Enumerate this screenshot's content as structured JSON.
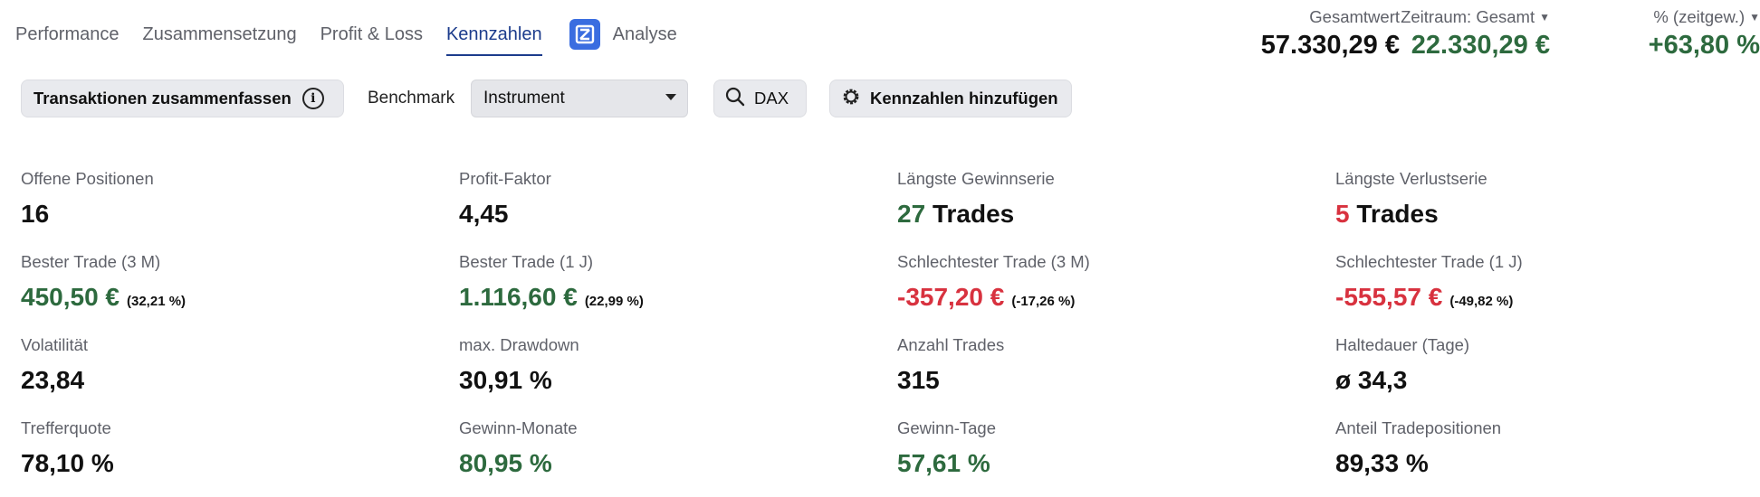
{
  "nav": {
    "tabs": [
      {
        "label": "Performance",
        "active": false
      },
      {
        "label": "Zusammensetzung",
        "active": false
      },
      {
        "label": "Profit & Loss",
        "active": false
      },
      {
        "label": "Kennzahlen",
        "active": true
      }
    ],
    "analyse_label": "Analyse"
  },
  "summary": {
    "gesamtwert_label": "Gesamtwert",
    "gesamtwert_value": "57.330,29 €",
    "zeitraum_label": "Zeitraum: Gesamt",
    "zeitraum_value": "22.330,29 €",
    "percent_label": "% (zeitgew.)",
    "percent_value": "+63,80 %"
  },
  "toolbar": {
    "summarize_label": "Transaktionen zusammenfassen",
    "info_glyph": "i",
    "benchmark_label": "Benchmark",
    "benchmark_selected": "Instrument",
    "dax_label": "DAX",
    "add_metrics_label": "Kennzahlen hinzufügen"
  },
  "metrics": {
    "offene_positionen": {
      "label": "Offene Positionen",
      "value": "16"
    },
    "profit_faktor": {
      "label": "Profit-Faktor",
      "value": "4,45"
    },
    "gewinnserie": {
      "label": "Längste Gewinnserie",
      "count": "27",
      "unit": "Trades"
    },
    "verlustserie": {
      "label": "Längste Verlustserie",
      "count": "5",
      "unit": "Trades"
    },
    "bester_3m": {
      "label": "Bester Trade (3 M)",
      "value": "450,50 €",
      "sub": "(32,21 %)"
    },
    "bester_1j": {
      "label": "Bester Trade (1 J)",
      "value": "1.116,60 €",
      "sub": "(22,99 %)"
    },
    "schlechtester_3m": {
      "label": "Schlechtester Trade (3 M)",
      "value": "-357,20 €",
      "sub": "(-17,26 %)"
    },
    "schlechtester_1j": {
      "label": "Schlechtester Trade (1 J)",
      "value": "-555,57 €",
      "sub": "(-49,82 %)"
    },
    "volatilitaet": {
      "label": "Volatilität",
      "value": "23,84"
    },
    "max_drawdown": {
      "label": "max. Drawdown",
      "value": "30,91 %"
    },
    "anzahl_trades": {
      "label": "Anzahl Trades",
      "value": "315"
    },
    "haltedauer": {
      "label": "Haltedauer (Tage)",
      "value": "ø 34,3"
    },
    "trefferquote": {
      "label": "Trefferquote",
      "value": "78,10 %"
    },
    "gewinn_monate": {
      "label": "Gewinn-Monate",
      "value": "80,95 %"
    },
    "gewinn_tage": {
      "label": "Gewinn-Tage",
      "value": "57,61 %"
    },
    "anteil_tradepositionen": {
      "label": "Anteil Tradepositionen",
      "value": "89,33 %"
    }
  },
  "colors": {
    "positive": "#2d6a3e",
    "negative": "#d8323f",
    "active_tab": "#1c3c8c",
    "analyse_logo": "#3a6de0"
  },
  "icons": {
    "analyse": "analyse-logo-icon",
    "info": "info-icon",
    "search": "search-icon",
    "add": "gear-add-icon",
    "caret": "caret-down-icon"
  }
}
